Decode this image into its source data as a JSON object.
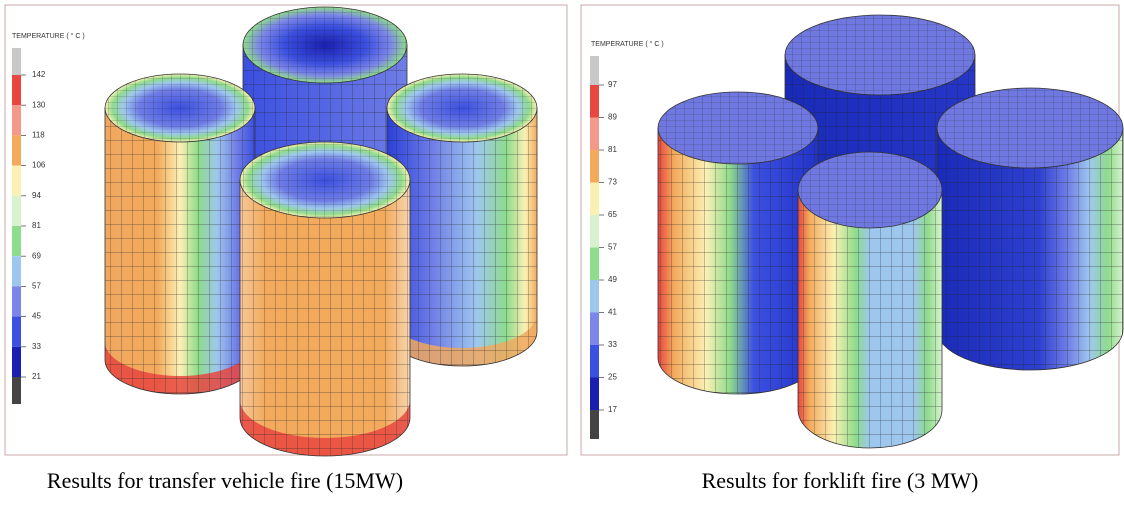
{
  "panels": [
    {
      "legend_title": "TEMPERATURE ( ° C )",
      "legend_labels": [
        142,
        130,
        118,
        106,
        94,
        81,
        69,
        57,
        45,
        33,
        21
      ],
      "caption": "Results for transfer vehicle fire (15MW)"
    },
    {
      "legend_title": "TEMPERATURE ( ° C )",
      "legend_labels": [
        97,
        89,
        81,
        73,
        65,
        57,
        49,
        41,
        33,
        25,
        17
      ],
      "caption": "Results for forklift fire (3 MW)"
    }
  ]
}
